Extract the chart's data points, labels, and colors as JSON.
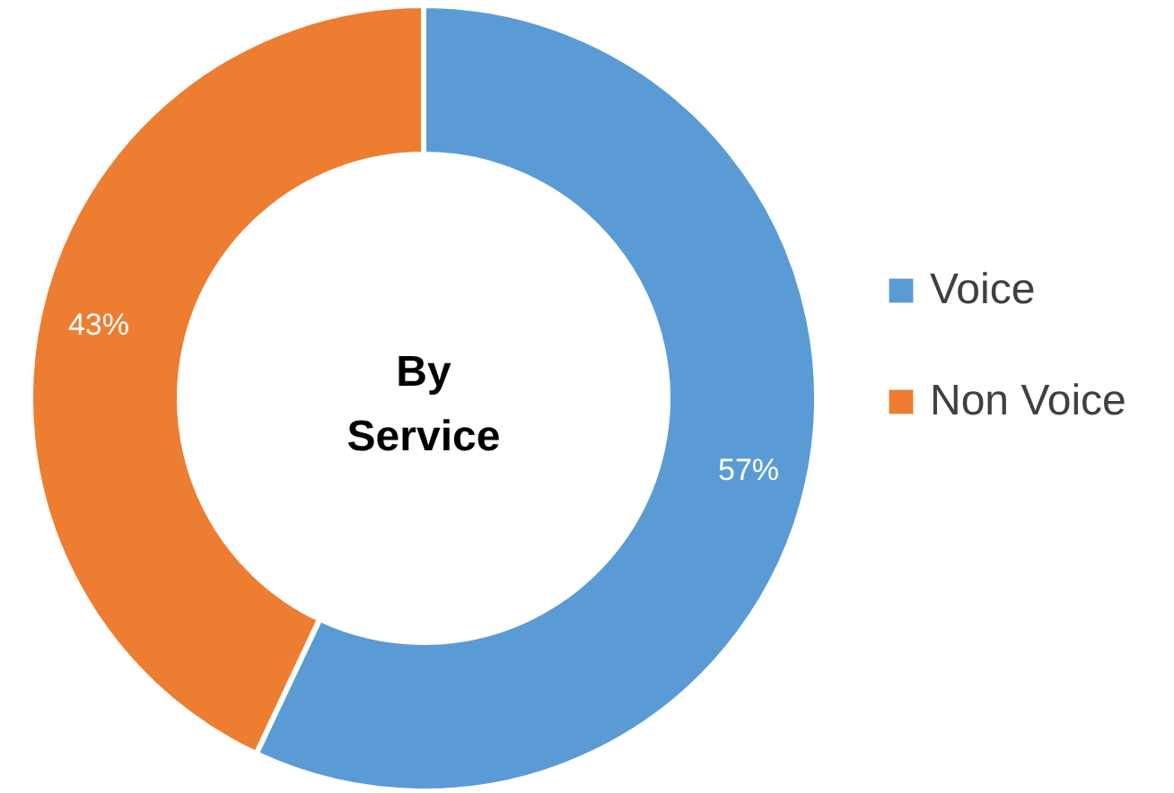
{
  "chart_data": {
    "type": "donut",
    "title": "By Service",
    "categories": [
      "Voice",
      "Non Voice"
    ],
    "values": [
      57,
      43
    ],
    "colors": [
      "#5b9bd5",
      "#ed7d31"
    ],
    "value_labels": [
      "57%",
      "43%"
    ],
    "legend": "right"
  }
}
